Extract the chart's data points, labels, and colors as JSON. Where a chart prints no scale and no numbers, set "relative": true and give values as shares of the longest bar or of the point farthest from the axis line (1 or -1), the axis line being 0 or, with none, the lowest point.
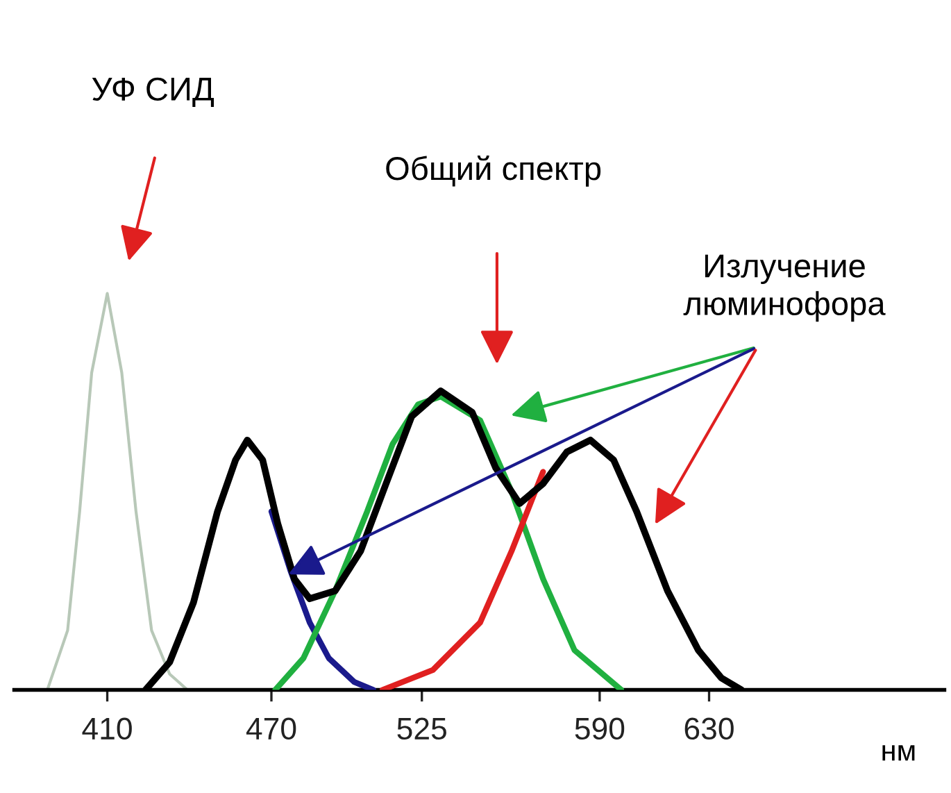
{
  "chart_data": {
    "type": "line",
    "relative": true,
    "xlabel": "нм",
    "xlim": [
      376,
      716
    ],
    "xticks": [
      410,
      470,
      525,
      590,
      630
    ],
    "grid": false,
    "legend": false,
    "marker": "none",
    "line_style": "solid",
    "series": [
      {
        "color": "#b8c8b8",
        "x": [
          388.1,
          395.5,
          399.9,
          404.3,
          410,
          415.3,
          420.5,
          426.2,
          432.8,
          439.3
        ],
        "values": [
          0,
          0.15,
          0.45,
          0.8,
          1,
          0.8,
          0.45,
          0.15,
          0.04,
          0
        ]
      },
      {
        "color": "#1a1a8c",
        "x": [
          470,
          477,
          484,
          491,
          500.3,
          507.3
        ],
        "values": [
          0.45,
          0.3,
          0.17,
          0.08,
          0.02,
          0
        ]
      },
      {
        "color": "#20b040",
        "x": [
          471.4,
          481.7,
          493.3,
          505,
          514.3,
          523.6,
          531.9,
          546.3,
          557.8,
          569.3,
          580.8,
          597.9
        ],
        "values": [
          0,
          0.08,
          0.25,
          0.45,
          0.62,
          0.72,
          0.74,
          0.68,
          0.5,
          0.28,
          0.1,
          0
        ]
      },
      {
        "color": "#e02020",
        "x": [
          510.6,
          529,
          546.3,
          557.8,
          566.4,
          569.3
        ],
        "values": [
          0,
          0.05,
          0.17,
          0.35,
          0.5,
          0.55
        ]
      },
      {
        "color": "#000000",
        "x": [
          424.0,
          432.8,
          441.5,
          450.3,
          456.9,
          461.2,
          466.8,
          472.3,
          478.4,
          484.0,
          493.3,
          502.6,
          511.9,
          521.3,
          531.9,
          543.4,
          552.0,
          560.7,
          569.3,
          578.0,
          586.6,
          595.1,
          603.5,
          614.8,
          626.1,
          634.5,
          641.8
        ],
        "values": [
          0,
          0.07,
          0.22,
          0.45,
          0.58,
          0.63,
          0.58,
          0.42,
          0.28,
          0.23,
          0.25,
          0.35,
          0.52,
          0.69,
          0.754,
          0.7,
          0.56,
          0.47,
          0.52,
          0.6,
          0.63,
          0.58,
          0.45,
          0.25,
          0.1,
          0.03,
          0
        ]
      }
    ],
    "annotations": [
      "УФ СИД",
      "Общий спектр",
      "Излучение\nлюминофора"
    ]
  }
}
